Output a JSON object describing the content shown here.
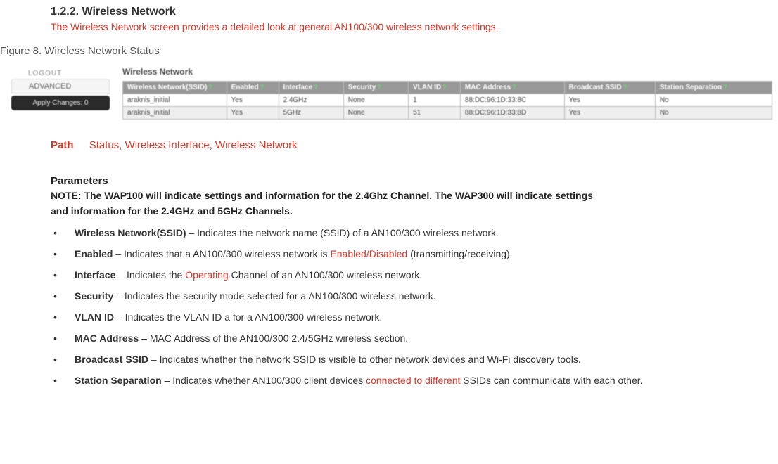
{
  "heading": "1.2.2. Wireless Network",
  "intro": "The Wireless Network screen provides a detailed look at general AN100/300 wireless network settings.",
  "figure_caption": "Figure 8. Wireless Network Status",
  "sidebar": {
    "logout": "LOGOUT",
    "advanced": "ADVANCED",
    "apply": "Apply Changes: 0"
  },
  "panel_title": "Wireless Network",
  "table": {
    "columns": [
      "Wireless Network(SSID)",
      "Enabled",
      "Interface",
      "Security",
      "VLAN ID",
      "MAC Address",
      "Broadcast SSID",
      "Station Separation"
    ],
    "help_marker": "?",
    "col_widths": [
      "16%",
      "8%",
      "10%",
      "10%",
      "8%",
      "16%",
      "14%",
      "18%"
    ],
    "rows": [
      [
        "araknis_initial",
        "Yes",
        "2.4GHz",
        "None",
        "1",
        "88:DC:96:1D:33:8C",
        "Yes",
        "No"
      ],
      [
        "araknis_initial",
        "Yes",
        "5GHz",
        "None",
        "51",
        "88:DC:96:1D:33:8D",
        "Yes",
        "No"
      ]
    ]
  },
  "path": {
    "label": "Path",
    "value": "Status, Wireless Interface, Wireless Network"
  },
  "parameters_heading": "Parameters",
  "note_bold": "NOTE: The WAP100 will indicate settings and information for the 2.4Ghz Channel. The WAP300 will indicate settings",
  "note_rest": "and information for the 2.4GHz and 5GHz Channels.",
  "params": [
    {
      "term": "Wireless Network(SSID)",
      "dash": " – ",
      "desc": "Indicates the network name (SSID) of a AN100/300 wireless network."
    },
    {
      "term": "Enabled",
      "dash": " – ",
      "s1": "Indicates that a AN100/300 wireless network is ",
      "red": "Enabled/Disabled",
      "s2": " (transmitting/receiving)."
    },
    {
      "term": "Interface",
      "dash": " – ",
      "s1": "Indicates the ",
      "red": "Operating",
      "s2": " Channel of an AN100/300 wireless network."
    },
    {
      "term": "Security",
      "dash": " – ",
      "desc": "Indicates the security mode selected for a AN100/300 wireless network."
    },
    {
      "term": "VLAN ID",
      "dash": " – ",
      "desc": "Indicates the VLAN ID a for a AN100/300 wireless network."
    },
    {
      "term": "MAC Address",
      "dash": " – ",
      "desc": "MAC Address of the AN100/300 2.4/5GHz wireless section."
    },
    {
      "term": "Broadcast SSID",
      "dash": " – ",
      "desc": "Indicates whether the network SSID is visible to other network devices and Wi-Fi discovery tools."
    },
    {
      "term": "Station Separation",
      "dash": " – ",
      "s1": "Indicates whether AN100/300 client devices ",
      "red": "connected to different",
      "s2": " SSIDs can communicate with each other."
    }
  ]
}
